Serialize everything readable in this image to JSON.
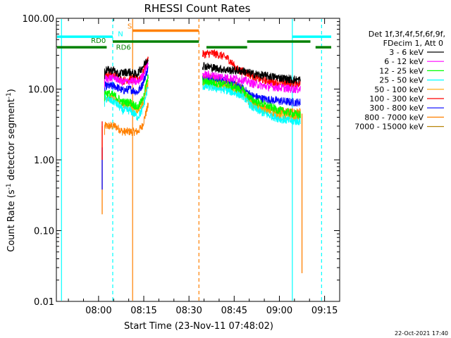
{
  "chart_data": {
    "type": "line",
    "title": "RHESSI Count Rates",
    "xlabel": "Start Time (23-Nov-11 07:48:02)",
    "ylabel_main": "Count Rate (s",
    "ylabel_sup": "-1",
    "ylabel_rest": " detector segment",
    "ylabel_sup2": "-1",
    "ylabel_close": ")",
    "y_scale": "log",
    "ylim": [
      0.01,
      100
    ],
    "xlim_minutes": [
      -2.0,
      92.0
    ],
    "x_ticks": [
      {
        "m": 12,
        "label": "08:00"
      },
      {
        "m": 27,
        "label": "08:15"
      },
      {
        "m": 42,
        "label": "08:30"
      },
      {
        "m": 57,
        "label": "08:45"
      },
      {
        "m": 72,
        "label": "09:00"
      },
      {
        "m": 87,
        "label": "09:15"
      }
    ],
    "y_ticks": [
      {
        "v": 100,
        "label": "100.00"
      },
      {
        "v": 10,
        "label": "10.00"
      },
      {
        "v": 1,
        "label": "1.00"
      },
      {
        "v": 0.1,
        "label": "0.10"
      },
      {
        "v": 0.01,
        "label": "0.01"
      }
    ],
    "legend": {
      "header1": "Det 1f,3f,4f,5f,6f,9f,",
      "header2": "FDecim 1, Att 0",
      "entries": [
        {
          "label": "3 - 6 keV",
          "color": "#000000"
        },
        {
          "label": "6 - 12 keV",
          "color": "#ff00ff"
        },
        {
          "label": "12 - 25 keV",
          "color": "#00ff00"
        },
        {
          "label": "25 - 50 keV",
          "color": "#00ffff"
        },
        {
          "label": "50 - 100 keV",
          "color": "#ffa500"
        },
        {
          "label": "100 - 300 keV",
          "color": "#ff0000"
        },
        {
          "label": "300 - 800 keV",
          "color": "#0000ff"
        },
        {
          "label": "800 - 7000 keV",
          "color": "#ff8000"
        },
        {
          "label": "7000 - 15000 keV",
          "color": "#b8860b"
        }
      ]
    },
    "series": [
      {
        "name": "3 - 6 keV",
        "color": "#000000",
        "segments": [
          [
            14.0,
            18.5
          ],
          [
            17.5,
            18.5
          ],
          [
            18.0,
            16.0
          ],
          [
            20.0,
            17.0
          ],
          [
            22.0,
            17.5
          ],
          [
            24.5,
            16.0
          ],
          [
            26.0,
            19.0
          ],
          [
            28.5,
            27.0
          ]
        ],
        "segments2": [
          [
            46.5,
            21.5
          ],
          [
            50.0,
            20.0
          ],
          [
            55.0,
            18.5
          ],
          [
            60.0,
            18.0
          ],
          [
            63.0,
            16.5
          ],
          [
            67.0,
            15.5
          ],
          [
            72.0,
            14.5
          ],
          [
            76.5,
            13.5
          ],
          [
            79.0,
            13.5
          ]
        ]
      },
      {
        "name": "6 - 12 keV",
        "color": "#ff00ff",
        "segments": [
          [
            14.0,
            14.0
          ],
          [
            17.5,
            14.5
          ],
          [
            20.0,
            12.5
          ],
          [
            22.5,
            13.0
          ],
          [
            25.0,
            12.5
          ],
          [
            26.5,
            15.0
          ],
          [
            28.5,
            24.0
          ]
        ],
        "segments2": [
          [
            46.5,
            16.0
          ],
          [
            50.0,
            15.5
          ],
          [
            55.0,
            14.5
          ],
          [
            60.0,
            13.5
          ],
          [
            63.0,
            12.0
          ],
          [
            67.0,
            11.0
          ],
          [
            72.0,
            10.5
          ],
          [
            76.5,
            10.0
          ],
          [
            79.0,
            10.0
          ]
        ]
      },
      {
        "name": "12 - 25 keV",
        "color": "#00ff00",
        "segments": [
          [
            14.0,
            9.0
          ],
          [
            17.5,
            8.0
          ],
          [
            20.0,
            6.5
          ],
          [
            22.5,
            6.5
          ],
          [
            25.0,
            5.5
          ],
          [
            26.5,
            7.0
          ],
          [
            28.5,
            15.0
          ]
        ],
        "segments2": [
          [
            46.5,
            13.0
          ],
          [
            50.0,
            12.5
          ],
          [
            55.0,
            11.5
          ],
          [
            60.0,
            9.5
          ],
          [
            63.0,
            7.0
          ],
          [
            67.0,
            6.0
          ],
          [
            72.0,
            5.0
          ],
          [
            76.5,
            4.5
          ],
          [
            79.0,
            4.3
          ]
        ]
      },
      {
        "name": "25 - 50 keV",
        "color": "#00ffff",
        "segments": [
          [
            14.0,
            7.5
          ],
          [
            17.5,
            6.5
          ],
          [
            20.0,
            5.0
          ],
          [
            22.5,
            5.0
          ],
          [
            25.0,
            4.0
          ],
          [
            26.5,
            5.0
          ],
          [
            28.5,
            11.0
          ]
        ],
        "segments2": [
          [
            46.5,
            11.0
          ],
          [
            50.0,
            10.5
          ],
          [
            55.0,
            9.5
          ],
          [
            60.0,
            8.0
          ],
          [
            63.0,
            5.5
          ],
          [
            67.0,
            4.5
          ],
          [
            72.0,
            3.8
          ],
          [
            76.5,
            3.5
          ],
          [
            79.0,
            3.5
          ]
        ]
      },
      {
        "name": "50 - 100 keV",
        "color": "#ffa500",
        "segments": [
          [
            14.0,
            8.0
          ],
          [
            17.5,
            7.0
          ],
          [
            20.0,
            5.8
          ],
          [
            22.5,
            6.0
          ],
          [
            25.0,
            5.0
          ],
          [
            26.5,
            6.0
          ],
          [
            28.5,
            13.0
          ]
        ],
        "segments2": [
          [
            46.5,
            12.0
          ],
          [
            50.0,
            11.5
          ],
          [
            55.0,
            10.5
          ],
          [
            60.0,
            8.5
          ],
          [
            63.0,
            6.0
          ],
          [
            67.0,
            5.0
          ],
          [
            72.0,
            4.3
          ],
          [
            76.5,
            4.0
          ],
          [
            79.0,
            4.0
          ]
        ]
      },
      {
        "name": "100 - 300 keV",
        "color": "#ff0000",
        "segments": [
          [
            14.0,
            16.0
          ],
          [
            17.5,
            15.5
          ],
          [
            20.0,
            13.0
          ],
          [
            22.5,
            14.0
          ],
          [
            25.0,
            13.5
          ],
          [
            26.5,
            16.0
          ],
          [
            28.5,
            28.0
          ]
        ],
        "segments2": [
          [
            46.5,
            31.0
          ],
          [
            50.0,
            32.0
          ],
          [
            52.5,
            30.0
          ],
          [
            55.0,
            27.0
          ],
          [
            58.0,
            19.0
          ],
          [
            61.0,
            17.0
          ],
          [
            65.0,
            14.0
          ],
          [
            70.0,
            12.5
          ],
          [
            76.5,
            12.0
          ],
          [
            79.0,
            12.0
          ]
        ]
      },
      {
        "name": "300 - 800 keV",
        "color": "#0000ff",
        "segments": [
          [
            14.0,
            11.0
          ],
          [
            17.5,
            11.0
          ],
          [
            20.0,
            9.5
          ],
          [
            22.5,
            10.0
          ],
          [
            25.0,
            9.0
          ],
          [
            26.5,
            11.5
          ],
          [
            28.5,
            20.0
          ]
        ],
        "segments2": [
          [
            46.5,
            14.0
          ],
          [
            50.0,
            14.0
          ],
          [
            55.0,
            13.0
          ],
          [
            60.0,
            10.0
          ],
          [
            63.0,
            8.0
          ],
          [
            67.0,
            7.2
          ],
          [
            72.0,
            6.8
          ],
          [
            76.5,
            6.5
          ],
          [
            79.0,
            6.5
          ]
        ]
      },
      {
        "name": "800 - 7000 keV",
        "color": "#ff8000",
        "segments": [
          [
            14.0,
            3.0
          ],
          [
            17.5,
            3.0
          ],
          [
            20.0,
            2.5
          ],
          [
            22.5,
            2.5
          ],
          [
            25.0,
            2.5
          ],
          [
            26.5,
            3.0
          ],
          [
            28.5,
            6.0
          ]
        ],
        "segments2": [
          [
            46.5,
            14.5
          ],
          [
            50.0,
            14.0
          ],
          [
            55.0,
            12.5
          ],
          [
            60.0,
            10.0
          ],
          [
            63.0,
            6.5
          ],
          [
            67.0,
            5.5
          ],
          [
            72.0,
            5.0
          ],
          [
            76.5,
            4.7
          ],
          [
            79.0,
            4.7
          ]
        ]
      },
      {
        "name": "7000 - 15000 keV",
        "color": "#b8860b",
        "segments": [],
        "segments2": []
      }
    ],
    "spikes": [
      {
        "x": 13.2,
        "from": 0.17,
        "to": 3.0,
        "color": "#ff8000"
      },
      {
        "x": 13.2,
        "from": 0.38,
        "to": 1.5,
        "color": "#0000ff"
      },
      {
        "x": 13.2,
        "from": 1.0,
        "to": 3.5,
        "color": "#ff0000"
      },
      {
        "x": 79.5,
        "from": 0.025,
        "to": 4.5,
        "color": "#ff8000"
      }
    ],
    "vlines": [
      {
        "x": -0.3,
        "color": "#00ffff",
        "dash": false
      },
      {
        "x": 16.7,
        "color": "#00ffff",
        "dash": true
      },
      {
        "x": 23.3,
        "color": "#ff8000",
        "dash": false
      },
      {
        "x": 45.3,
        "color": "#ff8000",
        "dash": true
      },
      {
        "x": 76.3,
        "color": "#00ffff",
        "dash": false
      },
      {
        "x": 86.0,
        "color": "#00ffff",
        "dash": true
      }
    ],
    "bars": [
      {
        "row": "cyan",
        "value": 55,
        "color": "#00ffff",
        "from": -2.0,
        "to": 16.7
      },
      {
        "row": "cyan",
        "value": 55,
        "color": "#00ffff",
        "from": 76.3,
        "to": 89.2
      },
      {
        "row": "orange",
        "value": 67,
        "color": "#ff8000",
        "from": 23.3,
        "to": 45.3
      },
      {
        "row": "green",
        "value": 47,
        "color": "#008000",
        "from": 16.7,
        "to": 45.3
      },
      {
        "row": "green",
        "value": 47,
        "color": "#008000",
        "from": 61.3,
        "to": 82.3
      },
      {
        "row": "green2",
        "value": 39,
        "color": "#008000",
        "from": -2.0,
        "to": 14.7
      },
      {
        "row": "green2",
        "value": 39,
        "color": "#008000",
        "from": 47.8,
        "to": 61.3
      },
      {
        "row": "green2",
        "value": 39,
        "color": "#008000",
        "from": 84.0,
        "to": 89.2
      }
    ],
    "annotations": [
      {
        "text": "S",
        "x": 21.6,
        "v": 72,
        "color": "#ff8000"
      },
      {
        "text": "N",
        "x": 18.4,
        "v": 56,
        "color": "#00ffff"
      },
      {
        "text": "RD0",
        "x": 9.5,
        "v": 45,
        "color": "#008000"
      },
      {
        "text": "RD6",
        "x": 17.8,
        "v": 36,
        "color": "#008000"
      }
    ]
  },
  "footer_timestamp": "22-Oct-2021 17:40"
}
